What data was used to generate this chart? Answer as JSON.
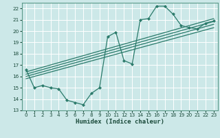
{
  "xlabel": "Humidex (Indice chaleur)",
  "bg_color": "#cce8e8",
  "grid_color": "#ffffff",
  "line_color": "#2a7a6a",
  "xlim": [
    -0.5,
    23.5
  ],
  "ylim": [
    13,
    22.5
  ],
  "yticks": [
    13,
    14,
    15,
    16,
    17,
    18,
    19,
    20,
    21,
    22
  ],
  "xticks": [
    0,
    1,
    2,
    3,
    4,
    5,
    6,
    7,
    8,
    9,
    10,
    11,
    12,
    13,
    14,
    15,
    16,
    17,
    18,
    19,
    20,
    21,
    22,
    23
  ],
  "line1_x": [
    0,
    1,
    2,
    3,
    4,
    5,
    6,
    7,
    8,
    9,
    10,
    11,
    12,
    13,
    14,
    15,
    16,
    17,
    18,
    19,
    20,
    21,
    22,
    23
  ],
  "line1_y": [
    16.6,
    15.0,
    15.2,
    15.0,
    14.9,
    13.9,
    13.7,
    13.5,
    14.5,
    15.0,
    19.5,
    19.9,
    17.4,
    17.1,
    21.0,
    21.1,
    22.2,
    22.2,
    21.5,
    20.5,
    20.3,
    20.2,
    20.7,
    20.9
  ],
  "line2_x": [
    0,
    23
  ],
  "line2_y": [
    15.8,
    20.3
  ],
  "line3_x": [
    0,
    23
  ],
  "line3_y": [
    16.0,
    20.6
  ],
  "line4_x": [
    0,
    23
  ],
  "line4_y": [
    16.2,
    20.85
  ],
  "line5_x": [
    0,
    23
  ],
  "line5_y": [
    16.4,
    21.1
  ]
}
